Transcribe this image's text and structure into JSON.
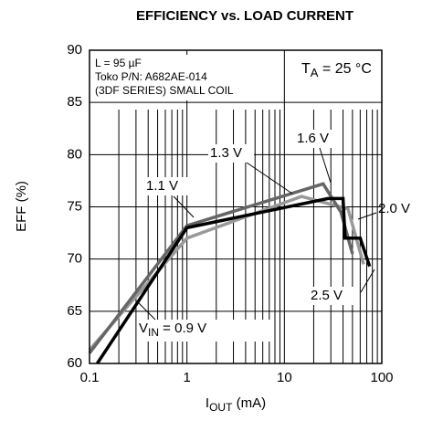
{
  "chart_data": {
    "type": "line",
    "title": "EFFICIENCY vs. LOAD CURRENT",
    "ylabel": "EFF (%)",
    "xlabel": {
      "main": "I",
      "sub": "OUT",
      "rest": " (mA)"
    },
    "xscale": "log",
    "grid": true,
    "xlim": [
      0.1,
      100
    ],
    "ylim": [
      60,
      90
    ],
    "xticks": [
      0.1,
      1,
      10,
      100
    ],
    "xminorticks": [
      0.2,
      0.3,
      0.4,
      0.5,
      0.6,
      0.7,
      0.8,
      0.9,
      2,
      3,
      4,
      5,
      6,
      7,
      8,
      9,
      20,
      30,
      40,
      50,
      60,
      70,
      80,
      90
    ],
    "yticks": [
      60,
      65,
      70,
      75,
      80,
      85,
      90
    ],
    "notes": [
      "L = 95 µF",
      "Toko P/N: A682AE-014",
      "(3DF SERIES) SMALL COIL"
    ],
    "temperature": {
      "main": "T",
      "sub": "A",
      "rest": " = 25 °C"
    },
    "annotations": [
      "1.1 V",
      "1.3 V",
      "1.6 V",
      "2.0 V",
      "2.5 V"
    ],
    "vin_label": {
      "main": "V",
      "sub": "IN",
      "rest": " = 0.9 V"
    },
    "series": [
      {
        "color": "#999999",
        "x": [
          0.1,
          1,
          15,
          45,
          65
        ],
        "values": [
          61.3,
          72,
          76,
          74.8,
          69.5
        ]
      },
      {
        "color": "#666666",
        "x": [
          0.1,
          1,
          25,
          38,
          50
        ],
        "values": [
          61,
          73.2,
          77.2,
          74.5,
          70.5
        ]
      },
      {
        "color": "#000000",
        "x": [
          0.12,
          1,
          28,
          40,
          42,
          60,
          75
        ],
        "values": [
          60,
          73,
          75.8,
          75.8,
          72,
          72,
          69.3
        ]
      }
    ]
  }
}
